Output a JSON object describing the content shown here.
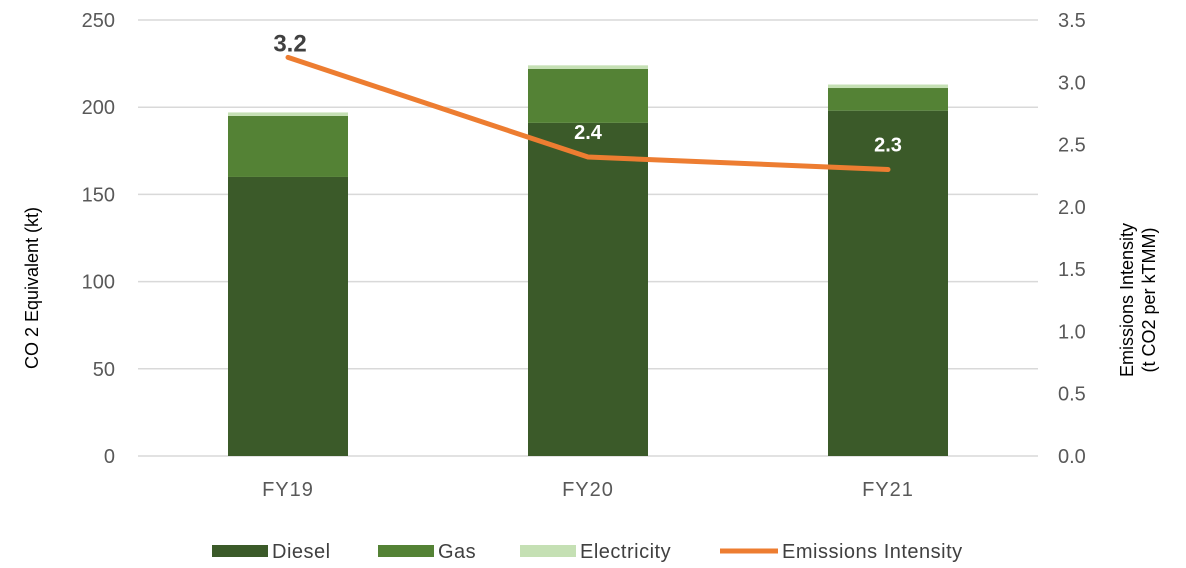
{
  "chart_data": {
    "type": "bar",
    "stacked": true,
    "categories": [
      "FY19",
      "FY20",
      "FY21"
    ],
    "series": [
      {
        "name": "Diesel",
        "type": "bar",
        "axis": "left",
        "color": "#3b5a29",
        "values": [
          160,
          191,
          198
        ]
      },
      {
        "name": "Gas",
        "type": "bar",
        "axis": "left",
        "color": "#548235",
        "values": [
          35,
          31,
          13
        ]
      },
      {
        "name": "Electricity",
        "type": "bar",
        "axis": "left",
        "color": "#c5e0b4",
        "values": [
          2,
          2,
          2
        ]
      },
      {
        "name": "Emissions Intensity",
        "type": "line",
        "axis": "right",
        "color": "#ed7d31",
        "values": [
          3.2,
          2.4,
          2.3
        ],
        "labels": [
          "3.2",
          "2.4",
          "2.3"
        ]
      }
    ],
    "ylabel": "CO 2 Equivalent (kt)",
    "y2label_line1": "Emissions Intensity",
    "y2label_line2": "(t CO2 per kTMM)",
    "ylim": [
      0,
      250
    ],
    "y2lim": [
      0,
      3.5
    ],
    "y_ticks": [
      "0",
      "50",
      "100",
      "150",
      "200",
      "250"
    ],
    "y2_ticks": [
      "0.0",
      "0.5",
      "1.0",
      "1.5",
      "2.0",
      "2.5",
      "3.0",
      "3.5"
    ],
    "grid": true,
    "legend_position": "bottom"
  }
}
